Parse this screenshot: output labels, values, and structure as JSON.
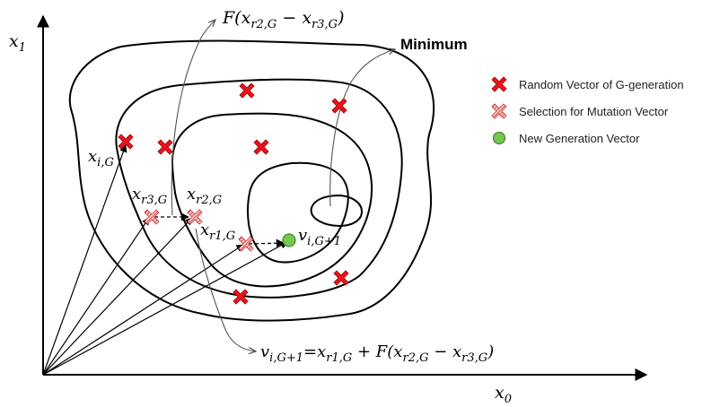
{
  "axes": {
    "y_label": "x",
    "y_sub": "1",
    "x_label": "x",
    "x_sub": "0"
  },
  "labels": {
    "minimum": "Minimum",
    "top_formula_prefix": "F(x",
    "top_formula_sub1": "r2,G",
    "top_formula_mid": " − x",
    "top_formula_sub2": "r3,G",
    "top_formula_suffix": ")",
    "xiG": "x",
    "xiG_sub": "i,G",
    "xr3G": "x",
    "xr3G_sub": "r3,G",
    "xr2G": "x",
    "xr2G_sub": "r2,G",
    "xr1G": "x",
    "xr1G_sub": "r1,G",
    "viG1": "v",
    "viG1_sub": "i,G+1",
    "bottom_v": "v",
    "bottom_v_sub": "i,G+1",
    "bottom_eq": "=x",
    "bottom_sub_r1": "r1,G",
    "bottom_plus": " + F(x",
    "bottom_sub_r2": "r2,G",
    "bottom_minus": " − x",
    "bottom_sub_r3": "r3,G",
    "bottom_close": ")"
  },
  "legend": {
    "items": [
      {
        "label": "Random Vector of G-generation",
        "marker": "red-cross"
      },
      {
        "label": "Selection for Mutation Vector",
        "marker": "hatched-cross"
      },
      {
        "label": "New Generation Vector",
        "marker": "green-circle"
      }
    ]
  },
  "colors": {
    "random": "#e8141c",
    "random_stroke": "#a00000",
    "selected_fill": "#f6c3c3",
    "selected_hatch": "#d42020",
    "new_gen": "#78c850",
    "new_gen_stroke": "#3f8a2a",
    "line": "#000000"
  }
}
